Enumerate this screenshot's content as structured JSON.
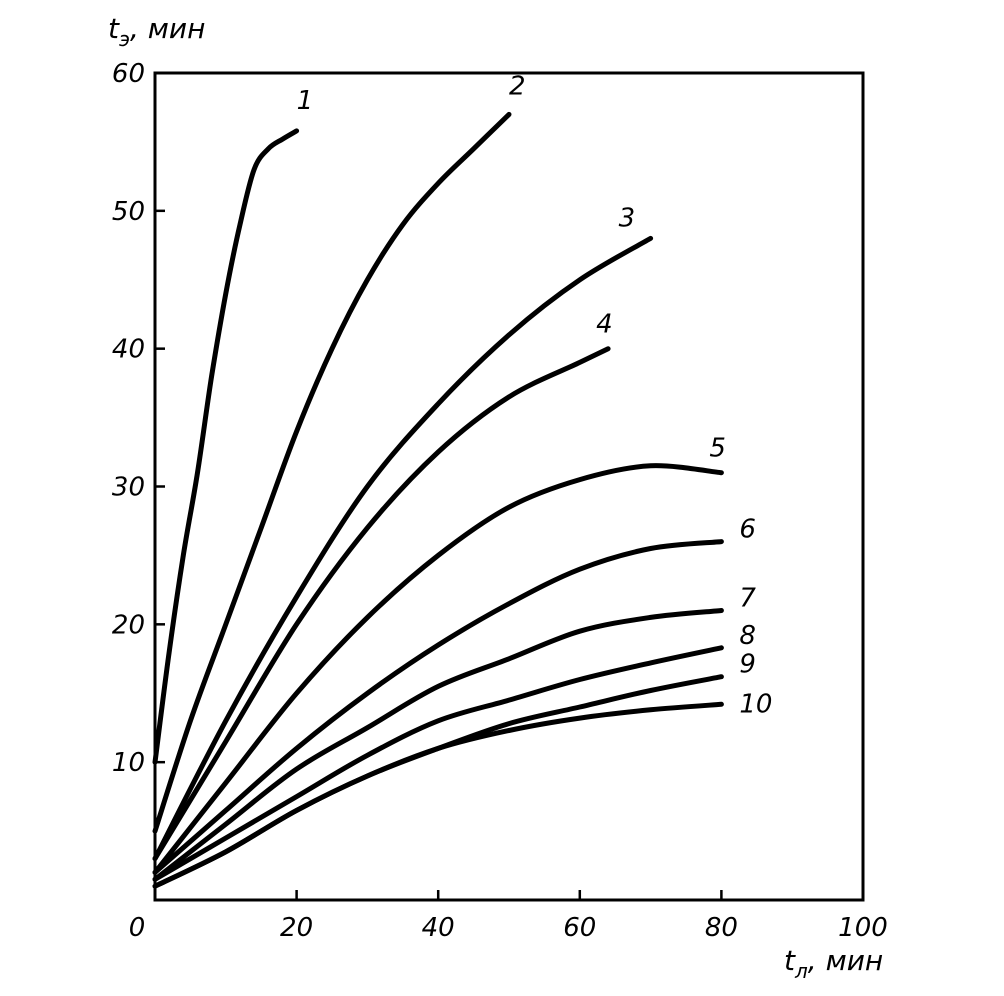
{
  "chart_data": {
    "type": "line",
    "ylabel_main": "t",
    "ylabel_sub": "э",
    "ylabel_unit": ", мин",
    "xlabel_main": "t",
    "xlabel_sub": "л",
    "xlabel_unit": ", мин",
    "xlim": [
      0,
      100
    ],
    "ylim": [
      0,
      60
    ],
    "x_ticks": [
      0,
      20,
      40,
      60,
      80,
      100
    ],
    "y_ticks": [
      10,
      20,
      30,
      40,
      50,
      60
    ],
    "x_tick_labels": [
      "0",
      "20",
      "40",
      "60",
      "80",
      "100"
    ],
    "y_tick_labels": [
      "10",
      "20",
      "30",
      "40",
      "50",
      "60"
    ],
    "grid": false,
    "series": [
      {
        "name": "1",
        "x": [
          0,
          2,
          4,
          6,
          8,
          10,
          12,
          14,
          16,
          18,
          20
        ],
        "y": [
          10,
          18,
          25,
          31,
          38,
          44,
          49,
          53,
          54.5,
          55.2,
          55.8
        ]
      },
      {
        "name": "2",
        "x": [
          0,
          5,
          10,
          15,
          20,
          25,
          30,
          35,
          40,
          45,
          50
        ],
        "y": [
          5,
          13,
          20,
          27,
          34,
          40,
          45,
          49,
          52,
          54.5,
          57
        ]
      },
      {
        "name": "3",
        "x": [
          0,
          10,
          20,
          30,
          40,
          50,
          60,
          70
        ],
        "y": [
          3,
          13,
          22,
          30,
          36,
          41,
          45,
          48
        ]
      },
      {
        "name": "4",
        "x": [
          0,
          10,
          20,
          30,
          40,
          50,
          60,
          64
        ],
        "y": [
          3,
          11.5,
          20,
          27,
          32.5,
          36.5,
          39,
          40
        ]
      },
      {
        "name": "5",
        "x": [
          0,
          10,
          20,
          30,
          40,
          50,
          60,
          70,
          80
        ],
        "y": [
          2,
          8.5,
          15,
          20.5,
          25,
          28.5,
          30.5,
          31.5,
          31
        ]
      },
      {
        "name": "6",
        "x": [
          0,
          10,
          20,
          30,
          40,
          50,
          60,
          70,
          80
        ],
        "y": [
          2,
          6.5,
          11,
          15,
          18.5,
          21.5,
          24,
          25.5,
          26
        ]
      },
      {
        "name": "7",
        "x": [
          0,
          10,
          20,
          30,
          40,
          50,
          60,
          70,
          80
        ],
        "y": [
          1.5,
          5.5,
          9.5,
          12.5,
          15.5,
          17.5,
          19.5,
          20.5,
          21
        ]
      },
      {
        "name": "8",
        "x": [
          0,
          10,
          20,
          30,
          40,
          50,
          60,
          70,
          80
        ],
        "y": [
          1.5,
          4.5,
          7.5,
          10.5,
          13,
          14.5,
          16,
          17.2,
          18.3
        ]
      },
      {
        "name": "9",
        "x": [
          0,
          10,
          20,
          30,
          40,
          50,
          60,
          70,
          80
        ],
        "y": [
          1,
          3.5,
          6.5,
          9,
          11,
          12.8,
          14,
          15.2,
          16.2
        ]
      },
      {
        "name": "10",
        "x": [
          0,
          10,
          20,
          30,
          40,
          50,
          60,
          70,
          80
        ],
        "y": [
          1,
          3.5,
          6.5,
          9,
          11,
          12.3,
          13.2,
          13.8,
          14.2
        ]
      }
    ]
  }
}
